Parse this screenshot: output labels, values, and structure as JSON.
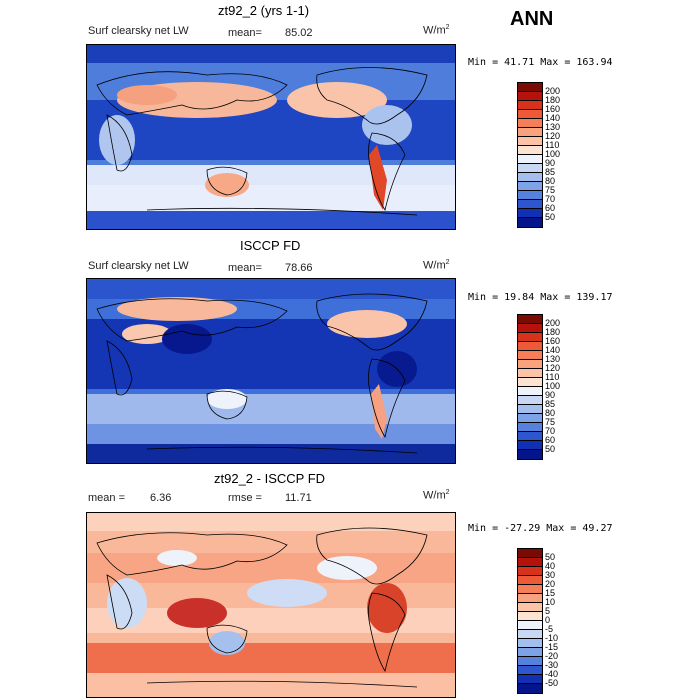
{
  "season": "ANN",
  "panels": [
    {
      "title": "zt92_2 (yrs 1-1)",
      "left_label": "Surf clearsky net LW",
      "mean_label": "mean=",
      "mean_value": "85.02",
      "units": "W/m",
      "units_exp": "2",
      "minmax": "Min =  41.71 Max = 163.94",
      "colorbar_levels": [
        "200",
        "180",
        "160",
        "140",
        "130",
        "120",
        "110",
        "100",
        "90",
        "85",
        "80",
        "75",
        "70",
        "60",
        "50"
      ],
      "colorbar_colors": [
        "#7a0a04",
        "#b4120a",
        "#d8321c",
        "#ee5a38",
        "#f57e58",
        "#f9a27e",
        "#fcc3a6",
        "#fde3d2",
        "#eef2fb",
        "#c8d8f4",
        "#a4bfee",
        "#7ea2e6",
        "#5681dc",
        "#2d56cf",
        "#1230b4",
        "#04148a"
      ]
    },
    {
      "title": "ISCCP FD",
      "left_label": "Surf clearsky net LW",
      "mean_label": "mean=",
      "mean_value": "78.66",
      "units": "W/m",
      "units_exp": "2",
      "minmax": "Min =  19.84 Max = 139.17",
      "colorbar_levels": [
        "200",
        "180",
        "160",
        "140",
        "130",
        "120",
        "110",
        "100",
        "90",
        "85",
        "80",
        "75",
        "70",
        "60",
        "50"
      ],
      "colorbar_colors": [
        "#7a0a04",
        "#b4120a",
        "#d8321c",
        "#ee5a38",
        "#f57e58",
        "#f9a27e",
        "#fcc3a6",
        "#fde3d2",
        "#eef2fb",
        "#c8d8f4",
        "#a4bfee",
        "#7ea2e6",
        "#5681dc",
        "#2d56cf",
        "#1230b4",
        "#04148a"
      ]
    },
    {
      "title": "zt92_2 - ISCCP FD",
      "left_label": "mean =",
      "mean_label": "",
      "mean_value": "6.36",
      "rmse_label": "rmse =",
      "rmse_value": "11.71",
      "units": "W/m",
      "units_exp": "2",
      "minmax": "Min = -27.29 Max =  49.27",
      "colorbar_levels": [
        "50",
        "40",
        "30",
        "20",
        "15",
        "10",
        "5",
        "0",
        "-5",
        "-10",
        "-15",
        "-20",
        "-30",
        "-40",
        "-50"
      ],
      "colorbar_colors": [
        "#7a0a04",
        "#b4120a",
        "#d8321c",
        "#ee5a38",
        "#f57e58",
        "#f9a27e",
        "#fcc3a6",
        "#fde3d2",
        "#eef2fb",
        "#c8d8f4",
        "#a4bfee",
        "#7ea2e6",
        "#5681dc",
        "#2d56cf",
        "#1230b4",
        "#04148a"
      ]
    }
  ],
  "chart_data": [
    {
      "type": "heatmap",
      "title": "zt92_2 (yrs 1-1)",
      "variable": "Surf clearsky net LW",
      "units": "W/m2",
      "mean": 85.02,
      "min": 41.71,
      "max": 163.94,
      "levels": [
        50,
        60,
        70,
        75,
        80,
        85,
        90,
        100,
        110,
        120,
        130,
        140,
        160,
        180,
        200
      ]
    },
    {
      "type": "heatmap",
      "title": "ISCCP FD",
      "variable": "Surf clearsky net LW",
      "units": "W/m2",
      "mean": 78.66,
      "min": 19.84,
      "max": 139.17,
      "levels": [
        50,
        60,
        70,
        75,
        80,
        85,
        90,
        100,
        110,
        120,
        130,
        140,
        160,
        180,
        200
      ]
    },
    {
      "type": "heatmap",
      "title": "zt92_2 - ISCCP FD",
      "units": "W/m2",
      "mean": 6.36,
      "rmse": 11.71,
      "min": -27.29,
      "max": 49.27,
      "levels": [
        -50,
        -40,
        -30,
        -20,
        -15,
        -10,
        -5,
        0,
        5,
        10,
        15,
        20,
        30,
        40,
        50
      ]
    }
  ]
}
